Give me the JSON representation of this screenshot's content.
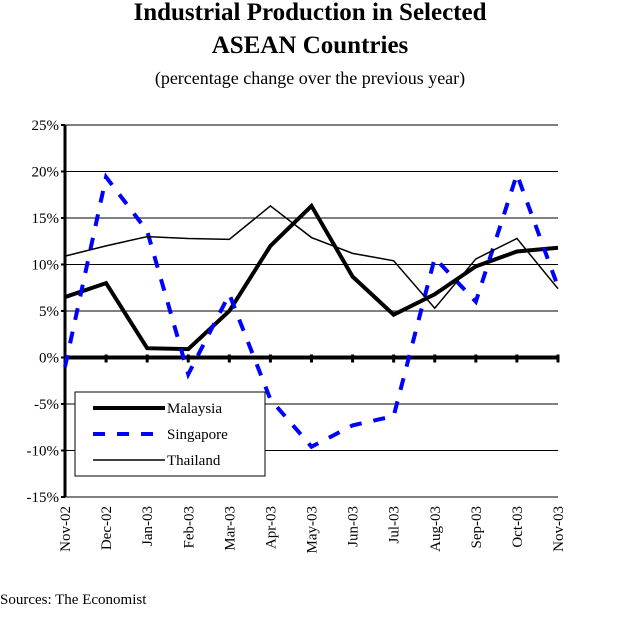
{
  "chart_data": {
    "type": "line",
    "title": [
      "Industrial Production in Selected",
      "ASEAN Countries"
    ],
    "subtitle": "(percentage change over the previous year)",
    "categories": [
      "Nov-02",
      "Dec-02",
      "Jan-03",
      "Feb-03",
      "Mar-03",
      "Apr-03",
      "May-03",
      "Jun-03",
      "Jul-03",
      "Aug-03",
      "Sep-03",
      "Oct-03",
      "Nov-03"
    ],
    "series": [
      {
        "name": "Malaysia",
        "color": "#000000",
        "style": "bold",
        "values": [
          6.5,
          8.0,
          1.0,
          0.9,
          5.0,
          12.0,
          16.3,
          8.7,
          4.6,
          6.8,
          9.8,
          11.4,
          11.8
        ]
      },
      {
        "name": "Singapore",
        "color": "#0000ff",
        "style": "dashed",
        "values": [
          -1.0,
          19.4,
          13.6,
          -1.8,
          6.8,
          -4.5,
          -9.6,
          -7.3,
          -6.3,
          10.7,
          6.0,
          19.7,
          7.6
        ]
      },
      {
        "name": "Thailand",
        "color": "#000000",
        "style": "thin",
        "values": [
          10.9,
          12.0,
          13.0,
          12.8,
          12.7,
          16.3,
          12.9,
          11.2,
          10.4,
          5.3,
          10.6,
          12.8,
          7.4
        ]
      }
    ],
    "ylim": [
      -15,
      25
    ],
    "yticks": [
      {
        "value": -15,
        "label": "-15%"
      },
      {
        "value": -10,
        "label": "-10%"
      },
      {
        "value": -5,
        "label": "-5%"
      },
      {
        "value": 0,
        "label": "0%"
      },
      {
        "value": 5,
        "label": "5%"
      },
      {
        "value": 10,
        "label": "10%"
      },
      {
        "value": 15,
        "label": "15%"
      },
      {
        "value": 20,
        "label": "20%"
      },
      {
        "value": 25,
        "label": "25%"
      }
    ],
    "grid": true,
    "legend": "lower left",
    "source": "Sources: The Economist"
  }
}
